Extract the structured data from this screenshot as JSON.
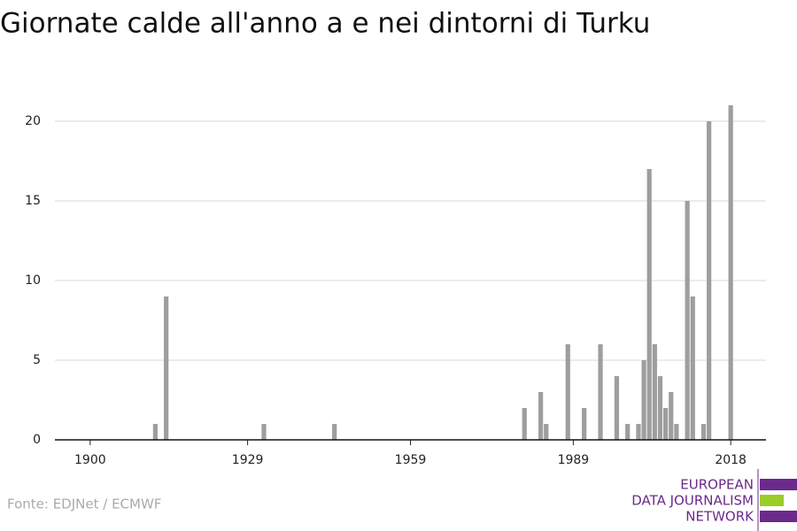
{
  "chart_data": {
    "type": "bar",
    "title": "Giornate calde all'anno a e nei dintorni di Turku",
    "x": [
      1912,
      1914,
      1932,
      1945,
      1980,
      1983,
      1984,
      1988,
      1991,
      1994,
      1997,
      1999,
      2001,
      2002,
      2003,
      2004,
      2005,
      2006,
      2007,
      2008,
      2010,
      2011,
      2013,
      2014,
      2018
    ],
    "values": [
      1,
      9,
      1,
      1,
      2,
      3,
      1,
      6,
      2,
      6,
      4,
      1,
      1,
      5,
      17,
      6,
      4,
      2,
      3,
      1,
      15,
      9,
      1,
      20,
      21
    ],
    "color": "#9e9e9e",
    "xlim": [
      1893.5,
      2024.5
    ],
    "xticks": [
      1900,
      1929,
      1959,
      1989,
      2018
    ],
    "ylim": [
      0,
      21.5
    ],
    "yticks": [
      0,
      5,
      10,
      15,
      20
    ],
    "grid": true,
    "source": "Fonte: EDJNet / ECMWF"
  },
  "logo": {
    "lines": [
      "EUROPEAN",
      "DATA JOURNALISM",
      "NETWORK"
    ]
  }
}
